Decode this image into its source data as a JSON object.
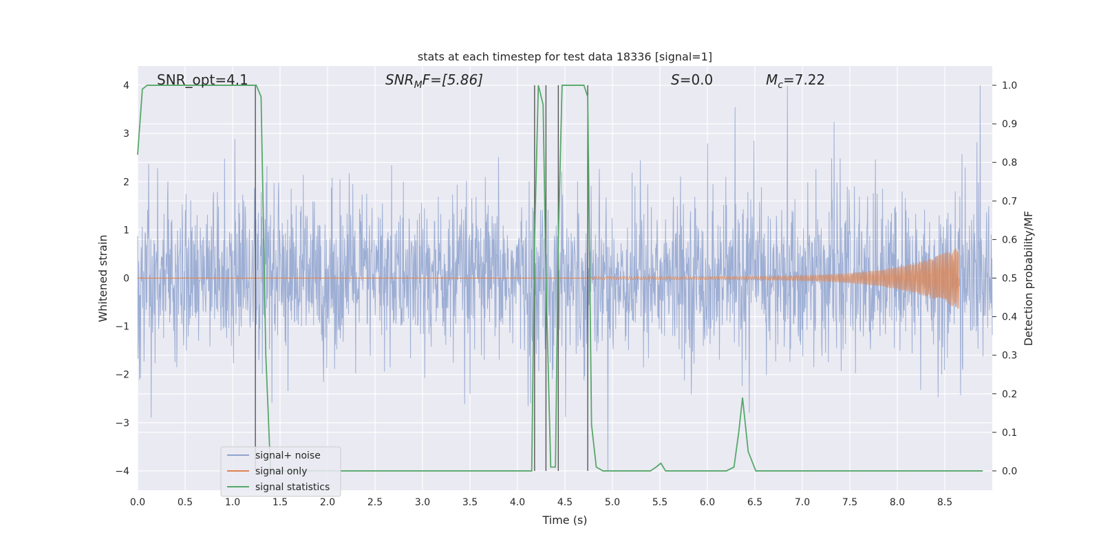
{
  "chart_data": {
    "type": "line",
    "title": "stats at each timestep for test data 18336 [signal=1]",
    "xlabel": "Time (s)",
    "ylabel": "Whitened strain",
    "y2label": "Detection probability/MF",
    "xlim": [
      0.0,
      9.0
    ],
    "ylim": [
      -4.4,
      4.4
    ],
    "y2lim": [
      -0.05,
      1.05
    ],
    "xticks": [
      "0.0",
      "0.5",
      "1.0",
      "1.5",
      "2.0",
      "2.5",
      "3.0",
      "3.5",
      "4.0",
      "4.5",
      "5.0",
      "5.5",
      "6.0",
      "6.5",
      "7.0",
      "7.5",
      "8.0",
      "8.5"
    ],
    "yticks": [
      "−4",
      "−3",
      "−2",
      "−1",
      "0",
      "1",
      "2",
      "3",
      "4"
    ],
    "y2ticks": [
      "0.0",
      "0.1",
      "0.2",
      "0.3",
      "0.4",
      "0.5",
      "0.6",
      "0.7",
      "0.8",
      "0.9",
      "1.0"
    ],
    "grid": true,
    "legend_position": "lower-left",
    "annotations": {
      "snr_opt": "SNR_opt=4.1",
      "snr_mf_prefix": "SNR",
      "snr_mf_sub": "M",
      "snr_mf_suffix": "F=[5.86]",
      "s_prefix": "S",
      "s_suffix": "=0.0",
      "mc_prefix": "M",
      "mc_sub": "c",
      "mc_suffix": "=7.22"
    },
    "vertical_lines_x": [
      1.24,
      4.18,
      4.3,
      4.43,
      4.74
    ],
    "series": [
      {
        "name": "signal+ noise",
        "color": "#8fa3cf",
        "description_kind": "noise",
        "amplitude_envelope": 1.6,
        "spike_max": 4.0
      },
      {
        "name": "signal only",
        "color": "#dd8452",
        "chirp_start": 4.75,
        "chirp_end": 8.65,
        "chirp_peak_amplitude": 0.62
      },
      {
        "name": "signal statistics",
        "color": "#55a868",
        "x": [
          0.0,
          0.05,
          0.1,
          0.2,
          0.5,
          1.0,
          1.2,
          1.25,
          1.3,
          1.35,
          1.4,
          2.0,
          3.0,
          4.0,
          4.1,
          4.15,
          4.18,
          4.22,
          4.27,
          4.3,
          4.35,
          4.4,
          4.43,
          4.47,
          4.5,
          4.6,
          4.7,
          4.74,
          4.78,
          4.83,
          4.9,
          5.0,
          5.3,
          5.4,
          5.46,
          5.51,
          5.56,
          5.6,
          6.0,
          6.2,
          6.28,
          6.33,
          6.37,
          6.43,
          6.51,
          6.6,
          7.0,
          8.0,
          8.9
        ],
        "values": [
          0.82,
          0.99,
          1.0,
          1.0,
          1.0,
          1.0,
          1.0,
          1.0,
          0.97,
          0.3,
          0.0,
          0.0,
          0.0,
          0.0,
          0.0,
          0.0,
          0.6,
          1.0,
          0.95,
          0.5,
          0.01,
          0.01,
          0.6,
          1.0,
          1.0,
          1.0,
          1.0,
          0.97,
          0.12,
          0.01,
          0.0,
          0.0,
          0.0,
          0.0,
          0.01,
          0.02,
          0.0,
          0.0,
          0.0,
          0.0,
          0.01,
          0.1,
          0.19,
          0.05,
          0.0,
          0.0,
          0.0,
          0.0,
          0.0
        ]
      }
    ]
  }
}
